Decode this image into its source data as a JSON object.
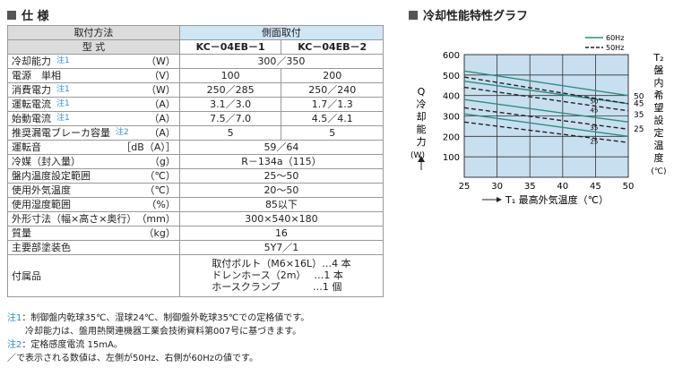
{
  "spec": {
    "title": "仕 様",
    "mounting_label": "取付方法",
    "mounting_value": "側面取付",
    "model_label": "型 式",
    "models": [
      "KC－04EB－1",
      "KC－04EB－2"
    ],
    "rows": [
      {
        "label": "冷却能力",
        "note": "注1",
        "unit": "（W）",
        "values": [
          "300／350"
        ]
      },
      {
        "label": "電源　単相",
        "note": "",
        "unit": "（V）",
        "values": [
          "100",
          "200"
        ]
      },
      {
        "label": "消費電力",
        "note": "注1",
        "unit": "（W）",
        "values": [
          "250／285",
          "250／240"
        ]
      },
      {
        "label": "運転電流",
        "note": "注1",
        "unit": "（A）",
        "values": [
          "3.1／3.0",
          "1.7／1.3"
        ]
      },
      {
        "label": "始動電流",
        "note": "注1",
        "unit": "（A）",
        "values": [
          "7.5／7.0",
          "4.5／4.1"
        ]
      },
      {
        "label": "推奨漏電ブレーカ容量",
        "note": "注2",
        "unit": "（A）",
        "values": [
          "5",
          "5"
        ]
      },
      {
        "label": "運転音",
        "note": "",
        "unit": "［dB（A）］",
        "values": [
          "59／64"
        ]
      },
      {
        "label": "冷媒（封入量）",
        "note": "",
        "unit": "（g）",
        "values": [
          "R－134a（115）"
        ]
      },
      {
        "label": "盤内温度設定範囲",
        "note": "",
        "unit": "（℃）",
        "values": [
          "25～50"
        ]
      },
      {
        "label": "使用外気温度",
        "note": "",
        "unit": "（℃）",
        "values": [
          "20～50"
        ]
      },
      {
        "label": "使用湿度範囲",
        "note": "",
        "unit": "（%）",
        "values": [
          "85以下"
        ]
      },
      {
        "label": "外形寸法（幅×高さ×奥行）",
        "note": "",
        "unit": "（mm）",
        "values": [
          "300×540×180"
        ]
      },
      {
        "label": "質量",
        "note": "",
        "unit": "（kg）",
        "values": [
          "16"
        ]
      },
      {
        "label": "主要部塗装色",
        "note": "",
        "unit": "",
        "values": [
          "5Y7／1"
        ]
      }
    ],
    "accessories_label": "付属品",
    "accessories": [
      "取付ボルト（M6×16L）…4 本",
      "ドレンホース（2m）　 …1 本",
      "ホースクランプ　　　 …1 個"
    ]
  },
  "notes": [
    {
      "mark": "注1",
      "text": "：制御盤内乾球35℃、湿球24℃、制御盤外乾球35℃での定格値です。"
    },
    {
      "mark": "",
      "text": "　　冷却能力は、盤用熱関連機器工業会技術資料第007号に基づきます。"
    },
    {
      "mark": "注2",
      "text": "：定格感度電流 15mA。"
    },
    {
      "mark": "",
      "text": "／で表示される数値は、左側が50Hz、右側が60Hzの値です。"
    }
  ],
  "chart_title": "冷却性能特性グラフ",
  "chart_data": {
    "type": "line",
    "title": "冷却性能特性グラフ",
    "xlabel": "T₁ 最高外気温度（℃）",
    "ylabel": "Q 冷却能力（W）",
    "right_label": "T₂ 盤内希望設定温度（℃）",
    "xlim": [
      25,
      50
    ],
    "ylim": [
      0,
      600
    ],
    "x_ticks": [
      25,
      30,
      35,
      40,
      45,
      50
    ],
    "y_ticks": [
      100,
      200,
      300,
      400,
      500,
      600
    ],
    "grid": true,
    "background_color": "#c8dff0",
    "legend": [
      "60Hz",
      "50Hz"
    ],
    "series": [
      {
        "name": "60Hz",
        "t2": "50",
        "style": "solid",
        "color": "#2a8f80",
        "x": [
          25,
          50
        ],
        "y": [
          520,
          400
        ]
      },
      {
        "name": "60Hz",
        "t2": "45",
        "style": "solid",
        "color": "#2a8f80",
        "x": [
          25,
          50
        ],
        "y": [
          470,
          360
        ]
      },
      {
        "name": "60Hz",
        "t2": "35",
        "style": "solid",
        "color": "#2a8f80",
        "x": [
          25,
          50
        ],
        "y": [
          380,
          270
        ]
      },
      {
        "name": "60Hz",
        "t2": "25",
        "style": "solid",
        "color": "#2a8f80",
        "x": [
          25,
          50
        ],
        "y": [
          310,
          200
        ]
      },
      {
        "name": "50Hz",
        "t2": "50",
        "style": "dashed",
        "color": "#222222",
        "x": [
          25,
          50
        ],
        "y": [
          490,
          360
        ]
      },
      {
        "name": "50Hz",
        "t2": "45",
        "style": "dashed",
        "color": "#222222",
        "x": [
          25,
          50
        ],
        "y": [
          440,
          325
        ]
      },
      {
        "name": "50Hz",
        "t2": "35",
        "style": "dashed",
        "color": "#222222",
        "x": [
          25,
          50
        ],
        "y": [
          340,
          235
        ]
      },
      {
        "name": "50Hz",
        "t2": "25",
        "style": "dashed",
        "color": "#222222",
        "x": [
          25,
          50
        ],
        "y": [
          270,
          170
        ]
      }
    ],
    "right_ticks": [
      "50",
      "45",
      "35",
      "25"
    ],
    "inner_labels": [
      "50",
      "45",
      "35",
      "25"
    ]
  }
}
